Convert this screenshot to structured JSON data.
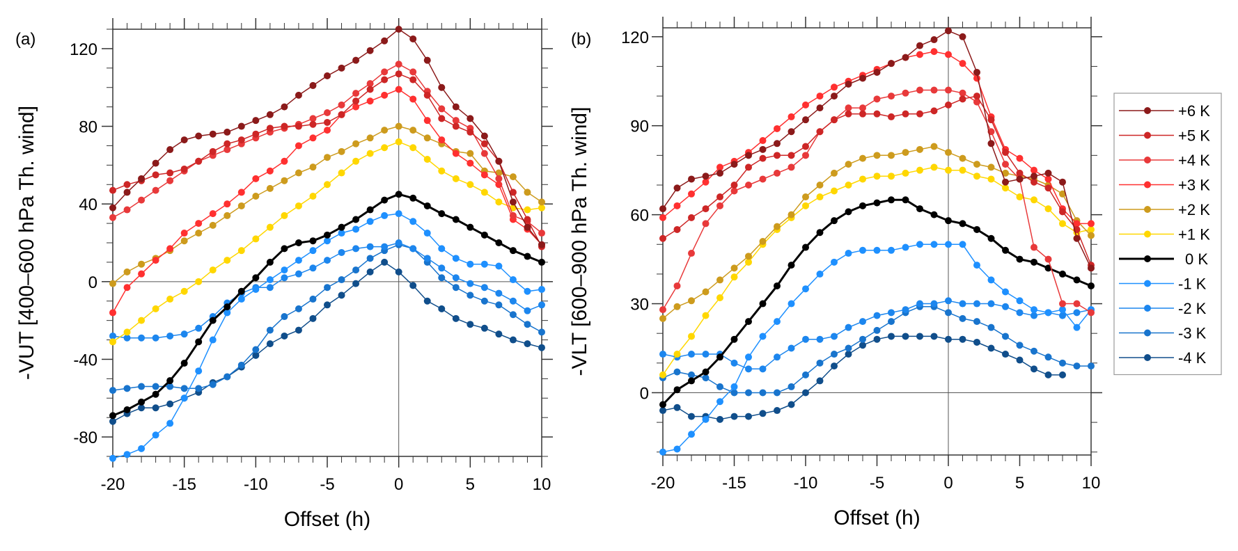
{
  "chart_data": [
    {
      "type": "line",
      "panel_label": "(a)",
      "xlabel": "Offset (h)",
      "ylabel": "-VUT [400–600 hPa Th. wind]",
      "xlim": [
        -20,
        10
      ],
      "ylim": [
        -90,
        130
      ],
      "xticks": [
        -20,
        -15,
        -10,
        -5,
        0,
        5,
        10
      ],
      "xtick_labels": [
        "-20",
        "-15",
        "-10",
        "-5",
        "0",
        "5",
        "10"
      ],
      "x_minor_step": 1,
      "yticks": [
        -80,
        -40,
        0,
        40,
        80,
        120
      ],
      "ytick_labels": [
        "-80",
        "-40",
        "0",
        "40",
        "80",
        "120"
      ],
      "y_minor_step": 10,
      "zero_lines": true,
      "x": [
        -20,
        -19,
        -18,
        -17,
        -16,
        -15,
        -14,
        -13,
        -12,
        -11,
        -10,
        -9,
        -8,
        -7,
        -6,
        -5,
        -4,
        -3,
        -2,
        -1,
        0,
        1,
        2,
        3,
        4,
        5,
        6,
        7,
        8,
        9,
        10
      ],
      "series": [
        {
          "name": "+6 K",
          "values": [
            38,
            46,
            53,
            61,
            68,
            73,
            75,
            76,
            77,
            80,
            83,
            86,
            90,
            96,
            101,
            106,
            110,
            114,
            119,
            124,
            130,
            125,
            114,
            100,
            90,
            84,
            75,
            62,
            41,
            28,
            19
          ]
        },
        {
          "name": "+5 K",
          "values": [
            47,
            50,
            52,
            55,
            56,
            58,
            62,
            67,
            71,
            73,
            76,
            79,
            80,
            80,
            81,
            82,
            86,
            93,
            99,
            104,
            107,
            104,
            96,
            84,
            80,
            77,
            71,
            62,
            46,
            32,
            18
          ]
        },
        {
          "name": "+4 K",
          "values": [
            33,
            37,
            42,
            47,
            52,
            57,
            62,
            65,
            68,
            71,
            74,
            77,
            79,
            81,
            84,
            87,
            91,
            97,
            102,
            108,
            112,
            108,
            98,
            89,
            83,
            79,
            66,
            53,
            34,
            31,
            25
          ]
        },
        {
          "name": "+3 K",
          "values": [
            -16,
            -3,
            4,
            11,
            17,
            25,
            30,
            35,
            40,
            46,
            53,
            57,
            62,
            70,
            74,
            78,
            86,
            90,
            93,
            96,
            99,
            94,
            83,
            73,
            66,
            61,
            55,
            50,
            32,
            27,
            19
          ]
        },
        {
          "name": "+2 K",
          "values": [
            -1,
            5,
            9,
            12,
            16,
            21,
            25,
            29,
            34,
            39,
            44,
            48,
            52,
            56,
            59,
            64,
            67,
            71,
            74,
            78,
            80,
            78,
            74,
            71,
            67,
            66,
            57,
            56,
            54,
            46,
            41
          ]
        },
        {
          "name": "+1 K",
          "values": [
            -31,
            -26,
            -20,
            -14,
            -9,
            -5,
            0,
            6,
            11,
            16,
            22,
            28,
            34,
            39,
            44,
            50,
            56,
            62,
            66,
            69,
            72,
            69,
            63,
            57,
            53,
            50,
            46,
            41,
            38,
            37,
            38
          ]
        },
        {
          "name": "0 K",
          "values": [
            -69,
            -66,
            -62,
            -58,
            -51,
            -42,
            -31,
            -20,
            -13,
            -5,
            2,
            10,
            17,
            20,
            21,
            24,
            28,
            32,
            37,
            42,
            45,
            43,
            39,
            35,
            32,
            28,
            24,
            20,
            16,
            13,
            10
          ]
        },
        {
          "name": "-1 K",
          "values": [
            -91,
            -89,
            -86,
            -79,
            -73,
            -60,
            -46,
            -30,
            -16,
            -9,
            -4,
            1,
            6,
            11,
            16,
            21,
            25,
            27,
            31,
            34,
            35,
            31,
            25,
            17,
            12,
            9,
            9,
            8,
            1,
            -5,
            -4
          ]
        },
        {
          "name": "-2 K",
          "values": [
            -28,
            -29,
            -29,
            -29,
            -28,
            -27,
            -24,
            -18,
            -11,
            -6,
            -3,
            -3,
            2,
            4,
            7,
            11,
            15,
            17,
            18,
            18,
            20,
            17,
            12,
            7,
            2,
            -1,
            -3,
            -6,
            -10,
            -15,
            -12
          ]
        },
        {
          "name": "-3 K",
          "values": [
            -56,
            -55,
            -54,
            -54,
            -54,
            -55,
            -55,
            -53,
            -49,
            -43,
            -35,
            -25,
            -18,
            -14,
            -9,
            -3,
            1,
            6,
            12,
            16,
            19,
            17,
            10,
            2,
            -3,
            -7,
            -10,
            -12,
            -17,
            -22,
            -26
          ]
        },
        {
          "name": "-4 K",
          "values": [
            -72,
            -68,
            -65,
            -65,
            -63,
            -60,
            -57,
            -52,
            -49,
            -44,
            -38,
            -32,
            -28,
            -25,
            -19,
            -12,
            -7,
            -1,
            5,
            10,
            5,
            -2,
            -10,
            -14,
            -19,
            -22,
            -24,
            -27,
            -30,
            -32,
            -34
          ]
        }
      ]
    },
    {
      "type": "line",
      "panel_label": "(b)",
      "xlabel": "Offset (h)",
      "ylabel": "-VLT [600–900 hPa Th. wind]",
      "xlim": [
        -20,
        10
      ],
      "ylim": [
        -21,
        123
      ],
      "xticks": [
        -20,
        -15,
        -10,
        -5,
        0,
        5,
        10
      ],
      "xtick_labels": [
        "-20",
        "-15",
        "-10",
        "-5",
        "0",
        "5",
        "10"
      ],
      "x_minor_step": 1,
      "yticks": [
        0,
        30,
        60,
        90,
        120
      ],
      "ytick_labels": [
        "0",
        "30",
        "60",
        "90",
        "120"
      ],
      "y_minor_step": 10,
      "zero_lines": true,
      "x": [
        -20,
        -19,
        -18,
        -17,
        -16,
        -15,
        -14,
        -13,
        -12,
        -11,
        -10,
        -9,
        -8,
        -7,
        -6,
        -5,
        -4,
        -3,
        -2,
        -1,
        0,
        1,
        2,
        3,
        4,
        5,
        6,
        7,
        8,
        9,
        10
      ],
      "series": [
        {
          "name": "+6 K",
          "values": [
            62,
            69,
            72,
            73,
            74,
            77,
            80,
            82,
            84,
            88,
            92,
            96,
            100,
            104,
            106,
            108,
            111,
            113,
            117,
            119,
            122,
            120,
            108,
            84,
            71,
            72,
            73,
            74,
            71,
            52,
            42
          ]
        },
        {
          "name": "+5 K",
          "values": [
            52,
            55,
            59,
            62,
            66,
            70,
            76,
            79,
            80,
            80,
            83,
            88,
            92,
            94,
            94,
            94,
            93,
            94,
            94,
            95,
            97,
            99,
            100,
            92,
            81,
            74,
            71,
            69,
            61,
            55,
            43
          ]
        },
        {
          "name": "+4 K",
          "values": [
            28,
            36,
            47,
            57,
            63,
            68,
            70,
            72,
            74,
            76,
            80,
            88,
            92,
            96,
            96,
            99,
            100,
            101,
            102,
            102,
            102,
            101,
            98,
            88,
            77,
            72,
            49,
            45,
            30,
            30,
            27
          ]
        },
        {
          "name": "+3 K",
          "values": [
            59,
            63,
            67,
            71,
            76,
            78,
            81,
            85,
            89,
            93,
            97,
            100,
            103,
            105,
            107,
            109,
            111,
            113,
            114,
            115,
            114,
            111,
            106,
            93,
            82,
            79,
            75,
            72,
            62,
            57,
            57
          ]
        },
        {
          "name": "+2 K",
          "values": [
            25,
            29,
            31,
            34,
            38,
            42,
            46,
            51,
            56,
            60,
            66,
            70,
            74,
            77,
            79,
            80,
            80,
            81,
            82,
            83,
            81,
            79,
            77,
            76,
            74,
            73,
            72,
            70,
            67,
            58,
            53
          ]
        },
        {
          "name": "+1 K",
          "values": [
            6,
            13,
            19,
            26,
            32,
            39,
            44,
            50,
            55,
            59,
            63,
            66,
            68,
            70,
            72,
            73,
            73,
            74,
            75,
            76,
            75,
            75,
            73,
            72,
            69,
            66,
            65,
            62,
            57,
            54,
            55
          ]
        },
        {
          "name": "0 K",
          "values": [
            -4,
            1,
            4,
            7,
            12,
            18,
            24,
            30,
            36,
            43,
            49,
            54,
            58,
            61,
            63,
            64,
            65,
            65,
            62,
            60,
            58,
            57,
            55,
            52,
            48,
            45,
            44,
            42,
            40,
            38,
            36
          ]
        },
        {
          "name": "-1 K",
          "values": [
            -20,
            -19,
            -14,
            -9,
            -3,
            2,
            12,
            19,
            24,
            30,
            35,
            40,
            44,
            47,
            48,
            48,
            48,
            49,
            50,
            50,
            50,
            50,
            43,
            38,
            34,
            31,
            28,
            27,
            28,
            22,
            28
          ]
        },
        {
          "name": "-2 K",
          "values": [
            13,
            12,
            13,
            13,
            13,
            10,
            8,
            8,
            12,
            15,
            18,
            18,
            19,
            22,
            24,
            26,
            27,
            28,
            30,
            30,
            31,
            30,
            30,
            30,
            29,
            27,
            26,
            27,
            26,
            27,
            28
          ]
        },
        {
          "name": "-3 K",
          "values": [
            5,
            7,
            6,
            5,
            2,
            0,
            0,
            0,
            0,
            2,
            6,
            10,
            13,
            15,
            18,
            21,
            24,
            27,
            29,
            29,
            27,
            25,
            24,
            22,
            19,
            16,
            14,
            12,
            10,
            9,
            9
          ]
        },
        {
          "name": "-4 K",
          "values": [
            -6,
            -5,
            -8,
            -8,
            -9,
            -8,
            -8,
            -7,
            -6,
            -4,
            0,
            4,
            9,
            13,
            16,
            18,
            19,
            19,
            19,
            19,
            18,
            18,
            17,
            15,
            13,
            11,
            8,
            6,
            6,
            null,
            null
          ]
        }
      ]
    }
  ],
  "legend": {
    "placement": "right",
    "entries": [
      {
        "label": "+6 K",
        "color": "#8B1A1A",
        "width": 1.5
      },
      {
        "label": "+5 K",
        "color": "#CD2626",
        "width": 1.5
      },
      {
        "label": "+4 K",
        "color": "#E8393A",
        "width": 1.5
      },
      {
        "label": "+3 K",
        "color": "#FF3030",
        "width": 1.5
      },
      {
        "label": "+2 K",
        "color": "#CD9B1D",
        "width": 1.5
      },
      {
        "label": "+1 K",
        "color": "#FFD700",
        "width": 1.5
      },
      {
        "label": "0 K",
        "color": "#000000",
        "width": 3
      },
      {
        "label": "-1 K",
        "color": "#1E90FF",
        "width": 1.5
      },
      {
        "label": "-2 K",
        "color": "#1C86EE",
        "width": 1.5
      },
      {
        "label": "-3 K",
        "color": "#1874CD",
        "width": 1.5
      },
      {
        "label": "-4 K",
        "color": "#104E8B",
        "width": 1.5
      }
    ]
  }
}
